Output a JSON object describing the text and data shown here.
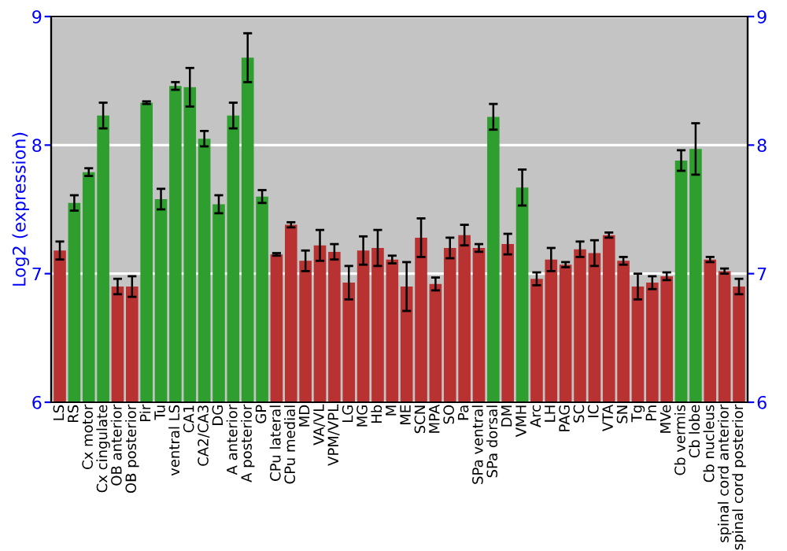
{
  "chart_data": {
    "type": "bar",
    "ylabel": "Log2 (expression)",
    "categories": [
      "LS",
      "RS",
      "Cx motor",
      "Cx cingulate",
      "OB anterior",
      "OB posterior",
      "Pir",
      "Tu",
      "ventral LS",
      "CA1",
      "CA2/CA3",
      "DG",
      "A anterior",
      "A posterior",
      "GP",
      "CPu lateral",
      "CPu medial",
      "MD",
      "VA/VL",
      "VPM/VPL",
      "LG",
      "MG",
      "Hb",
      "M",
      "ME",
      "SCN",
      "MPA",
      "SO",
      "Pa",
      "SPa ventral",
      "SPa dorsal",
      "DM",
      "VMH",
      "Arc",
      "LH",
      "PAG",
      "SC",
      "IC",
      "VTA",
      "SN",
      "Tg",
      "Pn",
      "MVe",
      "Cb vermis",
      "Cb lobe",
      "Cb nucleus",
      "spinal cord anterior",
      "spinal cord posterior"
    ],
    "values": [
      7.18,
      7.55,
      7.79,
      8.23,
      6.9,
      6.9,
      8.33,
      7.58,
      8.46,
      8.45,
      8.05,
      7.54,
      8.23,
      8.68,
      7.6,
      7.15,
      7.38,
      7.1,
      7.22,
      7.17,
      6.93,
      7.18,
      7.2,
      7.11,
      6.9,
      7.28,
      6.92,
      7.2,
      7.3,
      7.2,
      8.22,
      7.23,
      7.67,
      6.96,
      7.11,
      7.07,
      7.19,
      7.16,
      7.3,
      7.1,
      6.9,
      6.93,
      6.98,
      7.88,
      7.97,
      7.11,
      7.02,
      6.9
    ],
    "errors": [
      0.07,
      0.06,
      0.03,
      0.1,
      0.06,
      0.08,
      0.01,
      0.08,
      0.03,
      0.15,
      0.06,
      0.07,
      0.1,
      0.19,
      0.05,
      0.01,
      0.02,
      0.08,
      0.12,
      0.06,
      0.13,
      0.11,
      0.14,
      0.03,
      0.19,
      0.15,
      0.05,
      0.08,
      0.08,
      0.03,
      0.1,
      0.08,
      0.14,
      0.05,
      0.09,
      0.02,
      0.06,
      0.1,
      0.02,
      0.03,
      0.1,
      0.05,
      0.03,
      0.08,
      0.2,
      0.02,
      0.02,
      0.06
    ],
    "colors": [
      "#b83232",
      "#2e9e2e",
      "#2e9e2e",
      "#2e9e2e",
      "#b83232",
      "#b83232",
      "#2e9e2e",
      "#2e9e2e",
      "#2e9e2e",
      "#2e9e2e",
      "#2e9e2e",
      "#2e9e2e",
      "#2e9e2e",
      "#2e9e2e",
      "#2e9e2e",
      "#b83232",
      "#b83232",
      "#b83232",
      "#b83232",
      "#b83232",
      "#b83232",
      "#b83232",
      "#b83232",
      "#b83232",
      "#b83232",
      "#b83232",
      "#b83232",
      "#b83232",
      "#b83232",
      "#b83232",
      "#2e9e2e",
      "#b83232",
      "#2e9e2e",
      "#b83232",
      "#b83232",
      "#b83232",
      "#b83232",
      "#b83232",
      "#b83232",
      "#b83232",
      "#b83232",
      "#b83232",
      "#b83232",
      "#2e9e2e",
      "#2e9e2e",
      "#b83232",
      "#b83232",
      "#b83232"
    ],
    "ylim": [
      6,
      9
    ],
    "yticks": [
      6,
      7,
      8,
      9
    ],
    "y2lim": [
      6,
      9
    ],
    "y2ticks": [
      6,
      7,
      8,
      9
    ],
    "grid": "y"
  }
}
